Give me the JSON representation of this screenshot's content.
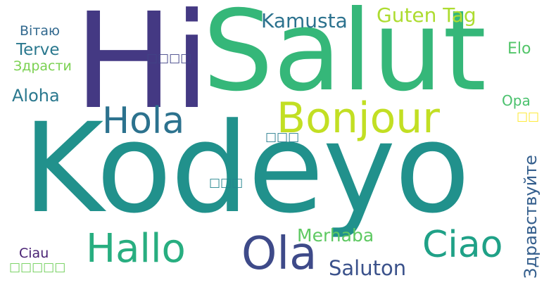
{
  "words": [
    {
      "text": "Kodeyo",
      "color": "#21918c"
    },
    {
      "text": "Hi",
      "color": "#443983"
    },
    {
      "text": "Salut",
      "color": "#35b779"
    },
    {
      "text": "Bonjour",
      "color": "#c2df23"
    },
    {
      "text": "Hola",
      "color": "#2c728e"
    },
    {
      "text": "Hallo",
      "color": "#28ae80"
    },
    {
      "text": "Ola",
      "color": "#3e4a89"
    },
    {
      "text": "Ciao",
      "color": "#1fa187"
    },
    {
      "text": "Kamusta",
      "color": "#2c728e"
    },
    {
      "text": "Guten Tag",
      "color": "#addc30"
    },
    {
      "text": "Merhaba",
      "color": "#5ec962"
    },
    {
      "text": "Saluton",
      "color": "#3b528b"
    },
    {
      "text": "Здравствуйте",
      "color": "#355f8d"
    },
    {
      "text": "Вітаю",
      "color": "#31688e"
    },
    {
      "text": "Terve",
      "color": "#2a788e"
    },
    {
      "text": "Здрасти",
      "color": "#7ad151"
    },
    {
      "text": "Aloha",
      "color": "#2a788e"
    },
    {
      "text": "Elo",
      "color": "#52c569"
    },
    {
      "text": "Opa",
      "color": "#4ac16d"
    },
    {
      "text": "Ciau",
      "color": "#482173"
    },
    {
      "text": "□□□□",
      "color": "#414487"
    },
    {
      "text": "□□□",
      "color": "#287c8e"
    },
    {
      "text": "□□□",
      "color": "#25858e"
    },
    {
      "text": "□□",
      "color": "#fde725"
    },
    {
      "text": "□□□□□",
      "color": "#6ece58"
    }
  ]
}
